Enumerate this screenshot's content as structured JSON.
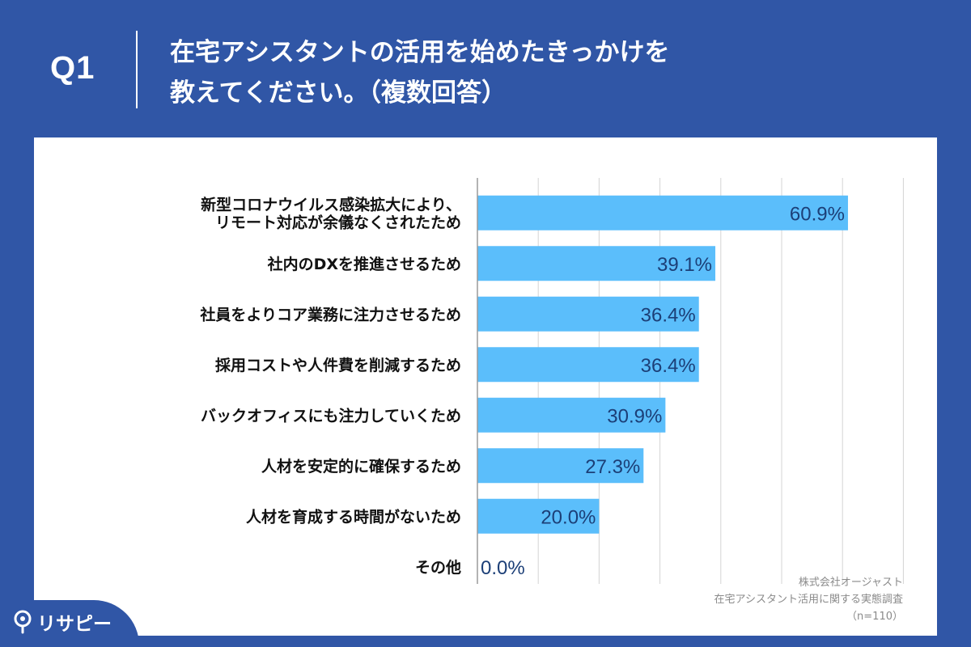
{
  "header": {
    "q_label": "Q1",
    "title_line1": "在宅アシスタントの活用を始めたきっかけを",
    "title_line2": "教えてください。（複数回答）"
  },
  "colors": {
    "page_bg": "#3056a6",
    "panel_bg": "#ffffff",
    "bar": "#5bbefb",
    "value_label": "#1c3f77",
    "category_label": "#111111",
    "gridline": "#d4d4d4"
  },
  "chart_data": {
    "type": "bar",
    "orientation": "horizontal",
    "categories": [
      [
        "新型コロナウイルス感染拡大により、",
        "リモート対応が余儀なくされたため"
      ],
      [
        "社内のDXを推進させるため"
      ],
      [
        "社員をよりコア業務に注力させるため"
      ],
      [
        "採用コストや人件費を削減するため"
      ],
      [
        "バックオフィスにも注力していくため"
      ],
      [
        "人材を安定的に確保するため"
      ],
      [
        "人材を育成する時間がないため"
      ],
      [
        "その他"
      ]
    ],
    "values": [
      60.9,
      39.1,
      36.4,
      36.4,
      30.9,
      27.3,
      20.0,
      0.0
    ],
    "value_labels": [
      "60.9%",
      "39.1%",
      "36.4%",
      "36.4%",
      "30.9%",
      "27.3%",
      "20.0%",
      "0.0%"
    ],
    "xlim": [
      0,
      70
    ],
    "gridlines_at": [
      0,
      10,
      20,
      30,
      40,
      50,
      60,
      70
    ],
    "grid": true,
    "legend": "none"
  },
  "source": {
    "company": "株式会社オージャスト",
    "survey": "在宅アシスタント活用に関する実態調査",
    "sample": "（n=110）"
  },
  "brand": {
    "name": "リサピー",
    "icon": "lightbulb-icon"
  }
}
